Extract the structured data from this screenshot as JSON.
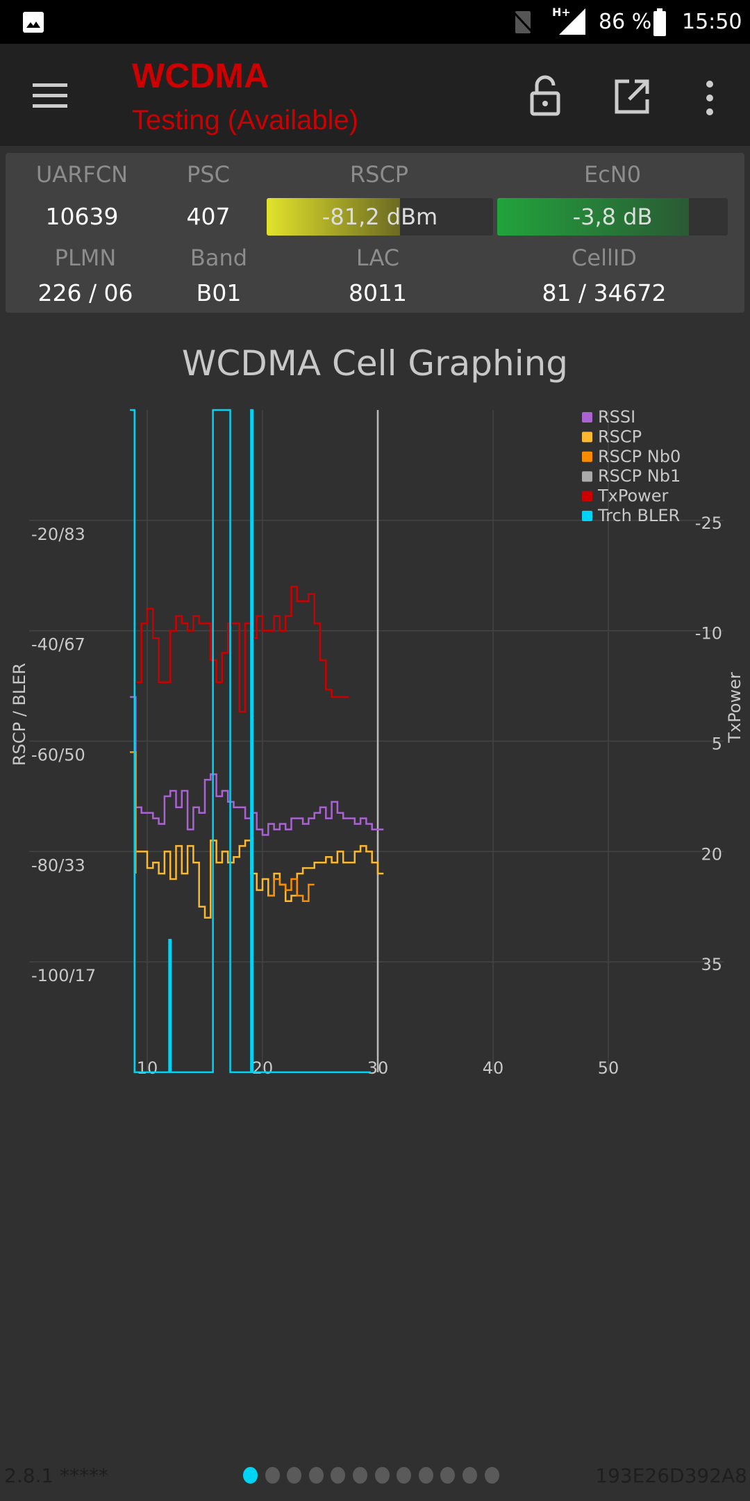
{
  "status_bar": {
    "battery": "86 %",
    "time": "15:50",
    "network": "H+"
  },
  "app_bar": {
    "title": "WCDMA",
    "subtitle": "Testing (Available)"
  },
  "cell_info": {
    "uarfcn_label": "UARFCN",
    "uarfcn": "10639",
    "psc_label": "PSC",
    "psc": "407",
    "rscp_label": "RSCP",
    "rscp": "-81,2 dBm",
    "rscp_fill": 0.59,
    "ecn0_label": "EcN0",
    "ecn0": "-3,8 dB",
    "ecn0_fill": 0.83,
    "plmn_label": "PLMN",
    "plmn": "226 / 06",
    "band_label": "Band",
    "band": "B01",
    "lac_label": "LAC",
    "lac": "8011",
    "cellid_label": "CellID",
    "cellid": "81 / 34672"
  },
  "colors": {
    "rssi": "#a964d1",
    "rscp": "#fbb930",
    "nb0": "#fb8c00",
    "nb1": "#aaaaaa",
    "txpower": "#cc0000",
    "bler": "#00d4f5",
    "accent_dot": "#00d4f5"
  },
  "chart_data": {
    "type": "line",
    "title": "WCDMA Cell Graphing",
    "xlabel": "",
    "ylabel_left": "RSCP / BLER",
    "ylabel_right": "TxPower",
    "xlim": [
      0,
      60
    ],
    "ylim_left": [
      -120,
      0
    ],
    "ylim_right": [
      -40,
      50
    ],
    "bler_range": [
      0,
      100
    ],
    "x_ticks": [
      "10",
      "20",
      "30",
      "40",
      "50"
    ],
    "left_ticks": [
      {
        "v": -20,
        "label": "-20/83"
      },
      {
        "v": -40,
        "label": "-40/67"
      },
      {
        "v": -60,
        "label": "-60/50"
      },
      {
        "v": -80,
        "label": "-80/33"
      },
      {
        "v": -100,
        "label": "-100/17"
      }
    ],
    "right_ticks": [
      {
        "v": -25,
        "label": "-25"
      },
      {
        "v": -10,
        "label": "-10"
      },
      {
        "v": 5,
        "label": "5"
      },
      {
        "v": 20,
        "label": "20"
      },
      {
        "v": 35,
        "label": "35"
      }
    ],
    "cursor_x": 30,
    "legend": [
      "RSSI",
      "RSCP",
      "RSCP Nb0",
      "RSCP Nb1",
      "TxPower",
      "Trch BLER"
    ],
    "legend_position": "top-right",
    "series": [
      {
        "name": "RSSI",
        "axis": "left",
        "x_start": 8.5,
        "x_step": 0.5,
        "values": [
          -52,
          -72,
          -73,
          -73,
          -74,
          -75,
          -70,
          -69,
          -72,
          -69,
          -76,
          -72,
          -73,
          -67,
          -66,
          -70,
          -69,
          -71,
          -72,
          -72,
          -74,
          -73,
          -76,
          -77,
          -75,
          -76,
          -75,
          -76,
          -74,
          -74,
          -75,
          -74,
          -73,
          -72,
          -74,
          -71,
          -73,
          -74,
          -74,
          -75,
          -74,
          -75,
          -76,
          -76
        ]
      },
      {
        "name": "RSCP",
        "axis": "left",
        "x_start": 8.5,
        "x_step": 0.5,
        "values": [
          -62,
          -80,
          -80,
          -83,
          -82,
          -84,
          -80,
          -85,
          -79,
          -84,
          -79,
          -82,
          -90,
          -92,
          -78,
          -82,
          -80,
          -82,
          -81,
          -79,
          -78,
          -84,
          -87,
          -85,
          -88,
          -84,
          -86,
          -89,
          -88,
          -84,
          -83,
          -83,
          -82,
          -82,
          -81,
          -82,
          -80,
          -82,
          -82,
          -80,
          -79,
          -80,
          -82,
          -84
        ]
      },
      {
        "name": "RSCP Nb0",
        "axis": "left",
        "x_start": 8.5,
        "x_step": 0.5,
        "values": [
          -62,
          -84,
          null,
          null,
          null,
          null,
          null,
          null,
          null,
          null,
          null,
          null,
          null,
          null,
          null,
          null,
          null,
          null,
          null,
          null,
          null,
          null,
          null,
          null,
          -88,
          -85,
          -86,
          -87,
          -85,
          -88,
          -89,
          -86
        ]
      },
      {
        "name": "RSCP Nb1",
        "axis": "left",
        "x_start": 8.5,
        "x_step": 0.5,
        "values": []
      },
      {
        "name": "TxPower",
        "axis": "right",
        "x_start": 9,
        "x_step": 0.5,
        "values": [
          -3,
          -11,
          -13,
          -9,
          -3,
          -3,
          -10,
          -12,
          -11,
          -10,
          -12,
          -11,
          -11,
          -6,
          -3,
          -7,
          -11,
          -11,
          1,
          -11,
          -9,
          -12,
          -10,
          -10,
          -12,
          -10,
          -12,
          -16,
          -14,
          -14,
          -15,
          -11,
          -6,
          -2,
          -1,
          -1,
          -1
        ]
      },
      {
        "name": "Trch BLER",
        "axis": "bler",
        "points": [
          [
            8.5,
            100
          ],
          [
            8.9,
            0
          ],
          [
            11.9,
            20
          ],
          [
            12.05,
            0
          ],
          [
            15.7,
            100
          ],
          [
            17.2,
            0
          ],
          [
            19.0,
            100
          ],
          [
            19.15,
            0
          ],
          [
            29.4,
            0
          ]
        ]
      }
    ]
  },
  "footer": {
    "version": "2.8.1 *****",
    "device_id": "193E26D392A8",
    "page_count": 12,
    "current_page": 1
  }
}
